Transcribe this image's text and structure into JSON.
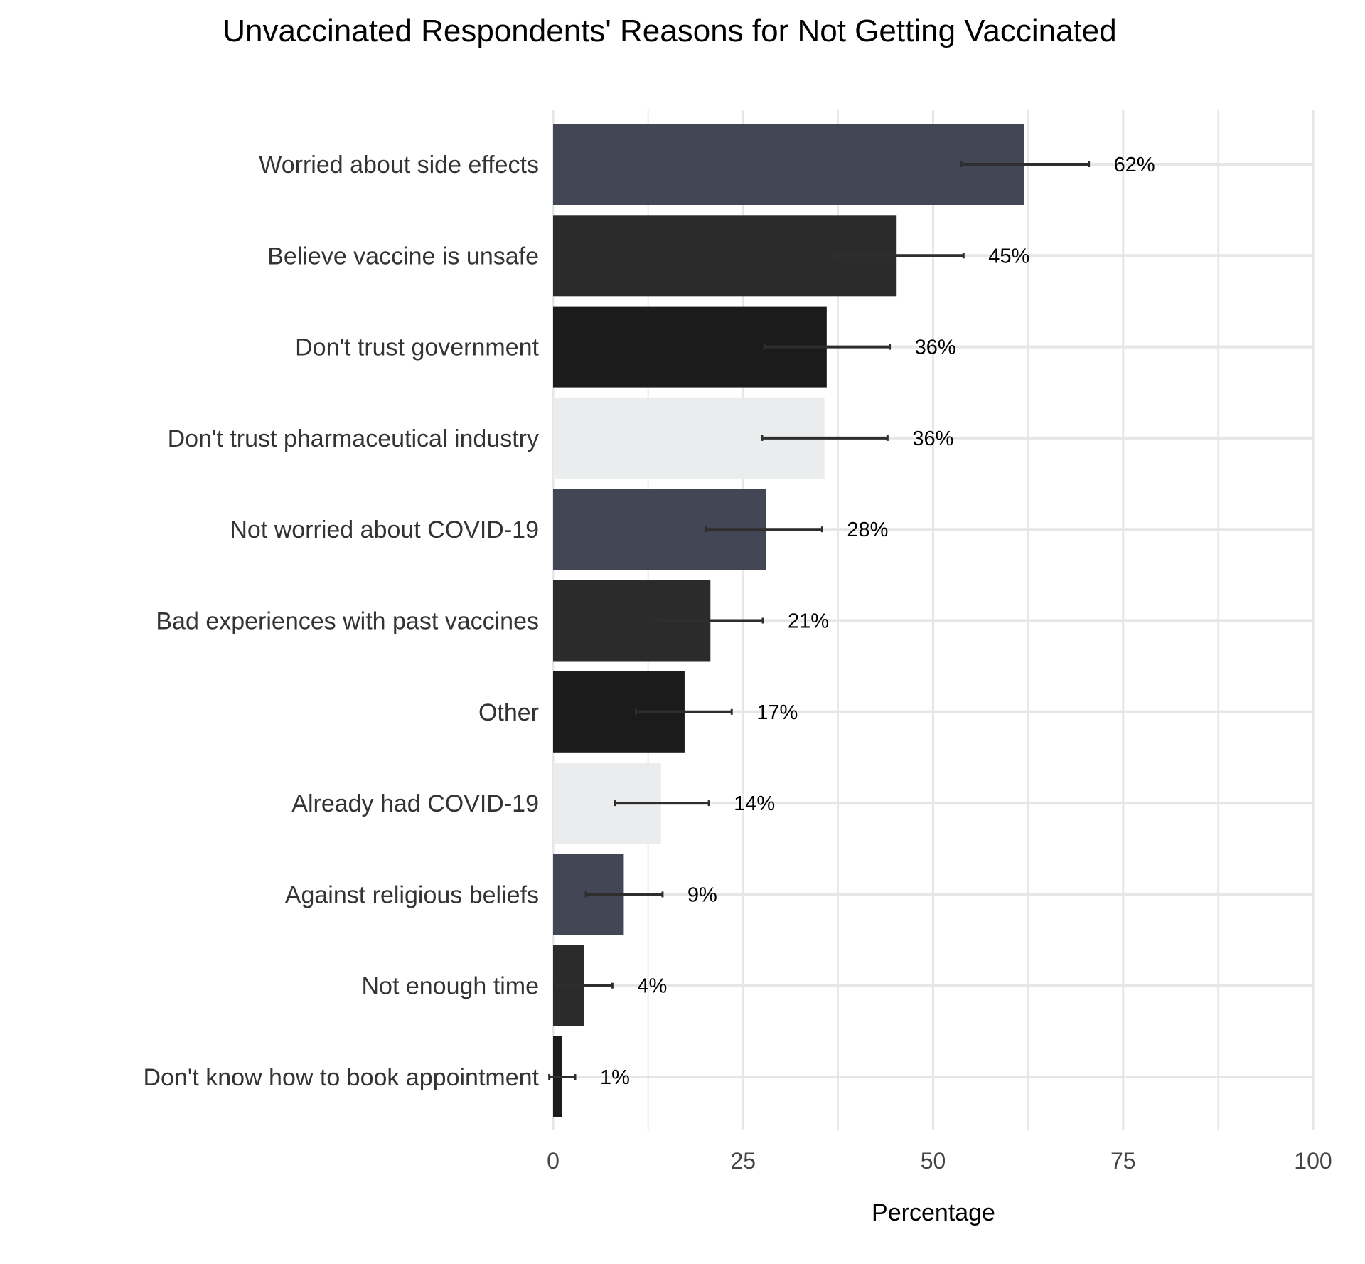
{
  "chart_data": {
    "type": "bar",
    "orientation": "horizontal",
    "title": "Unvaccinated Respondents' Reasons for Not Getting Vaccinated",
    "xlabel": "Percentage",
    "ylabel": "",
    "xlim": [
      0,
      100
    ],
    "xticks": [
      0,
      25,
      50,
      75,
      100
    ],
    "grid": true,
    "categories": [
      "Worried about side effects",
      "Believe vaccine is unsafe",
      "Don't trust government",
      "Don't trust pharmaceutical industry",
      "Not worried about COVID-19",
      "Bad experiences with past vaccines",
      "Other",
      "Already had COVID-19",
      "Against religious beliefs",
      "Not enough time",
      "Don't know how to book appointment"
    ],
    "values": [
      62,
      45.2,
      36,
      35.7,
      28,
      20.7,
      17.3,
      14.2,
      9.3,
      4.1,
      1.2
    ],
    "error_low": [
      53.7,
      37,
      27.8,
      27.5,
      20.1,
      13.5,
      10.9,
      8.1,
      4.3,
      0.5,
      -0.5
    ],
    "error_high": [
      70.5,
      54,
      44.3,
      44,
      35.4,
      27.6,
      23.5,
      20.5,
      14.4,
      7.8,
      2.9
    ],
    "data_labels": [
      "62%",
      "45%",
      "36%",
      "36%",
      "28%",
      "21%",
      "17%",
      "14%",
      "9%",
      "4%",
      "1%"
    ],
    "colors": [
      "#434654",
      "#2b2b2b",
      "#1b1b1b",
      "#ebeced"
    ],
    "error_bar_color": "#2e2e2e",
    "grid_color": "#e6e6e6"
  }
}
